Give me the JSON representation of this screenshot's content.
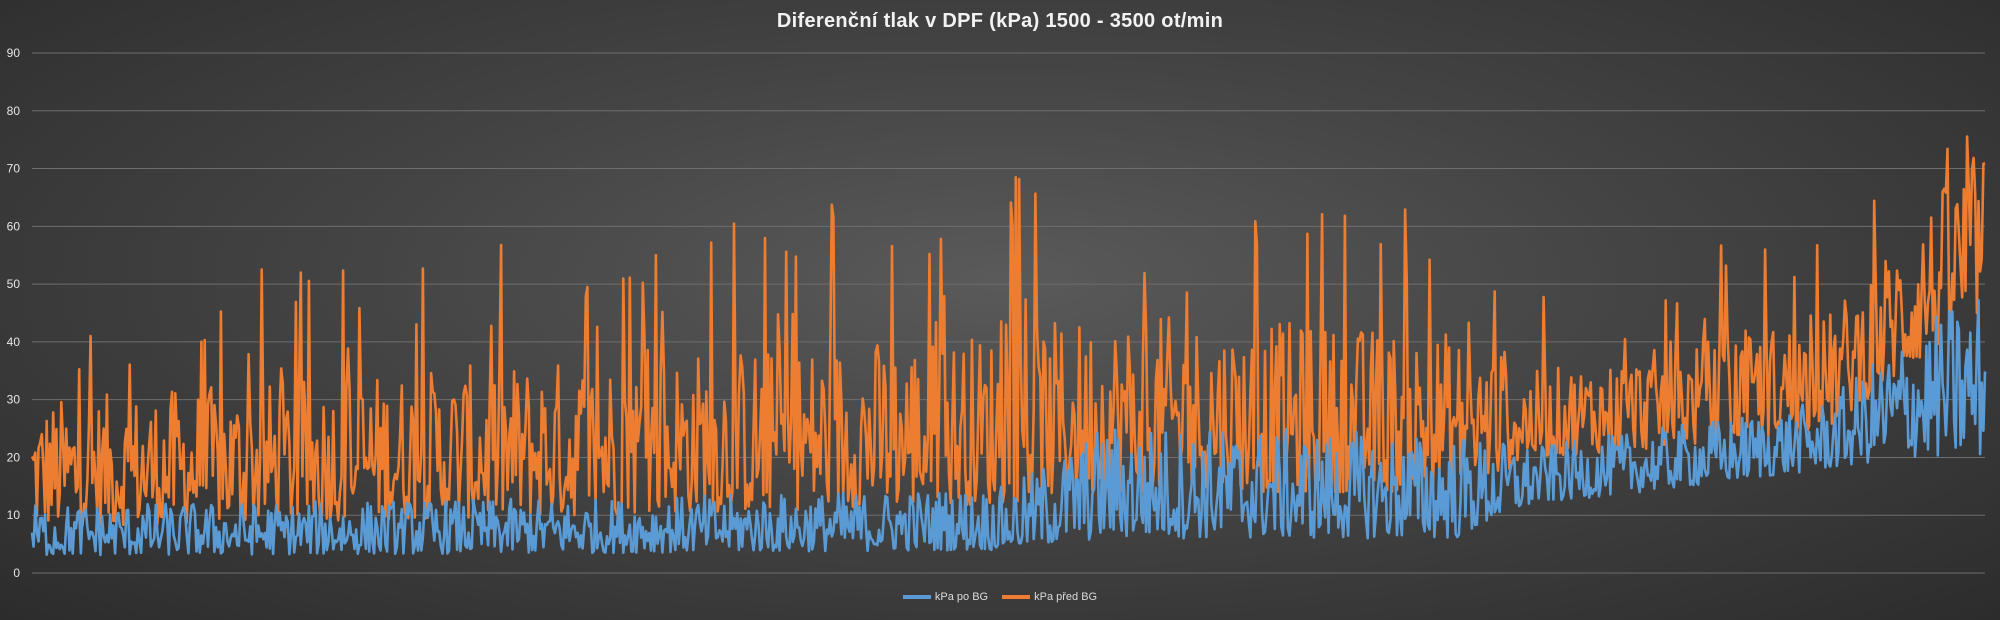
{
  "chart_data": {
    "type": "line",
    "title": "Diferenční tlak v DPF (kPa) 1500 - 3500 ot/min",
    "ylim": [
      0,
      90
    ],
    "yticks": [
      0,
      10,
      20,
      30,
      40,
      50,
      60,
      70,
      80,
      90
    ],
    "grid": true,
    "legend_position": "bottom",
    "sample_count": 1200,
    "series": [
      {
        "name": "kPa po BG",
        "color": "#5b9bd5",
        "profile": {
          "x_frac": [
            0,
            0.3,
            0.5,
            0.55,
            0.73,
            0.77,
            0.85,
            0.92,
            0.96,
            1.0
          ],
          "y_min": [
            3,
            3.5,
            4,
            6,
            6,
            12,
            15,
            18,
            20,
            20
          ],
          "y_max": [
            12,
            13,
            15,
            26,
            24,
            22,
            26,
            30,
            42,
            50
          ]
        }
      },
      {
        "name": "kPa před BG",
        "color": "#ed7d31",
        "profile": {
          "x_frac": [
            0,
            0.3,
            0.5,
            0.55,
            0.73,
            0.77,
            0.85,
            0.92,
            0.96,
            1.0
          ],
          "y_min": [
            8,
            10,
            12,
            14,
            14,
            20,
            22,
            25,
            35,
            45
          ],
          "y_max": [
            30,
            38,
            42,
            45,
            42,
            35,
            40,
            45,
            60,
            75
          ],
          "spike_max": [
            48,
            60,
            70,
            70,
            62,
            55,
            55,
            66,
            70,
            78
          ]
        }
      }
    ]
  }
}
